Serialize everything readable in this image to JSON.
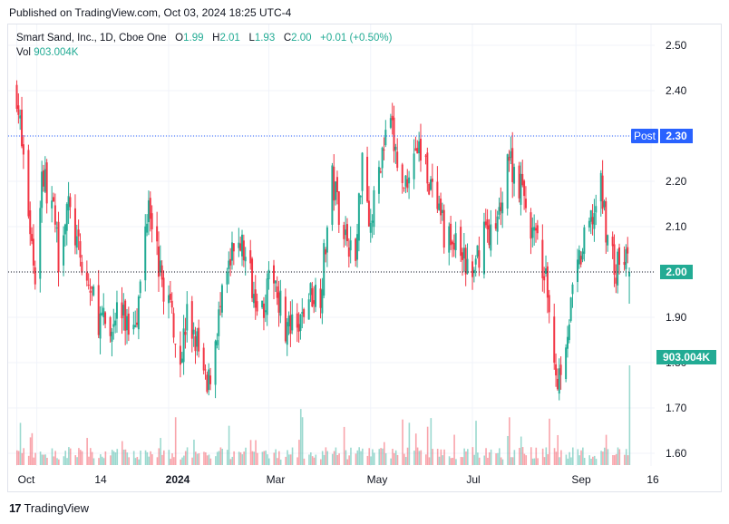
{
  "header": {
    "published_text": "Published on TradingView.com, Oct 03, 2024 18:25 UTC-4"
  },
  "legend": {
    "symbol": "Smart Sand, Inc., 1D, Cboe One",
    "o_label": "O",
    "o_value": "1.99",
    "h_label": "H",
    "h_value": "2.01",
    "l_label": "L",
    "l_value": "1.93",
    "c_label": "C",
    "c_value": "2.00",
    "change": "+0.01 (+0.50%)",
    "vol_label": "Vol",
    "vol_value": "903.004K"
  },
  "price_axis": {
    "ticks": [
      "2.50",
      "2.40",
      "2.30",
      "2.20",
      "2.10",
      "2.00",
      "1.90",
      "1.80",
      "1.70",
      "1.60"
    ],
    "post_label": "Post",
    "post_value": "2.30",
    "last_value": "2.00",
    "volume_badge": "903.004K"
  },
  "time_axis": {
    "labels": [
      "Oct",
      "14",
      "2024",
      "Mar",
      "May",
      "Jul",
      "Sep",
      "16"
    ]
  },
  "footer": {
    "brand": "TradingView"
  },
  "colors": {
    "up": "#22ab94",
    "down": "#f23645",
    "post_line": "#2962ff",
    "last_line": "#131722"
  },
  "chart_data": {
    "type": "candlestick",
    "title": "Smart Sand, Inc., 1D, Cboe One",
    "ylim": [
      1.57,
      2.53
    ],
    "x_labels": [
      "Oct",
      "14",
      "2024",
      "Mar",
      "May",
      "Jul",
      "Sep",
      "16"
    ],
    "post_price": 2.3,
    "last_price": 2.0,
    "last_volume": "903.004K",
    "close_path": [
      [
        "2023-10-02",
        2.4
      ],
      [
        "2023-10-05",
        2.28
      ],
      [
        "2023-10-10",
        2.1
      ],
      [
        "2023-10-13",
        1.99
      ],
      [
        "2023-10-17",
        2.22
      ],
      [
        "2023-10-23",
        2.15
      ],
      [
        "2023-10-27",
        2.04
      ],
      [
        "2023-11-01",
        2.15
      ],
      [
        "2023-11-06",
        2.08
      ],
      [
        "2023-11-10",
        2.0
      ],
      [
        "2023-11-15",
        1.96
      ],
      [
        "2023-11-20",
        1.9
      ],
      [
        "2023-11-27",
        1.86
      ],
      [
        "2023-12-01",
        1.92
      ],
      [
        "2023-12-08",
        1.88
      ],
      [
        "2023-12-14",
        1.93
      ],
      [
        "2023-12-20",
        2.18
      ],
      [
        "2023-12-27",
        1.99
      ],
      [
        "2024-01-03",
        1.91
      ],
      [
        "2024-01-08",
        1.81
      ],
      [
        "2024-01-12",
        1.9
      ],
      [
        "2024-01-18",
        1.84
      ],
      [
        "2024-01-24",
        1.73
      ],
      [
        "2024-01-30",
        1.88
      ],
      [
        "2024-02-06",
        2.0
      ],
      [
        "2024-02-12",
        2.08
      ],
      [
        "2024-02-20",
        1.98
      ],
      [
        "2024-02-26",
        1.92
      ],
      [
        "2024-03-04",
        2.0
      ],
      [
        "2024-03-11",
        1.88
      ],
      [
        "2024-03-18",
        1.86
      ],
      [
        "2024-03-25",
        1.95
      ],
      [
        "2024-04-01",
        1.96
      ],
      [
        "2024-04-08",
        2.2
      ],
      [
        "2024-04-15",
        2.1
      ],
      [
        "2024-04-22",
        2.02
      ],
      [
        "2024-04-26",
        2.27
      ],
      [
        "2024-05-01",
        2.1
      ],
      [
        "2024-05-07",
        2.25
      ],
      [
        "2024-05-13",
        2.32
      ],
      [
        "2024-05-20",
        2.18
      ],
      [
        "2024-05-28",
        2.28
      ],
      [
        "2024-06-03",
        2.24
      ],
      [
        "2024-06-10",
        2.12
      ],
      [
        "2024-06-17",
        2.07
      ],
      [
        "2024-06-24",
        2.04
      ],
      [
        "2024-07-01",
        1.98
      ],
      [
        "2024-07-08",
        2.1
      ],
      [
        "2024-07-15",
        2.08
      ],
      [
        "2024-07-22",
        2.26
      ],
      [
        "2024-07-29",
        2.2
      ],
      [
        "2024-08-05",
        2.1
      ],
      [
        "2024-08-12",
        2.02
      ],
      [
        "2024-08-16",
        1.92
      ],
      [
        "2024-08-21",
        1.76
      ],
      [
        "2024-08-26",
        1.86
      ],
      [
        "2024-09-03",
        2.02
      ],
      [
        "2024-09-09",
        2.1
      ],
      [
        "2024-09-16",
        2.18
      ],
      [
        "2024-09-20",
        2.08
      ],
      [
        "2024-09-25",
        2.0
      ],
      [
        "2024-09-30",
        2.04
      ],
      [
        "2024-10-03",
        2.0
      ]
    ]
  }
}
